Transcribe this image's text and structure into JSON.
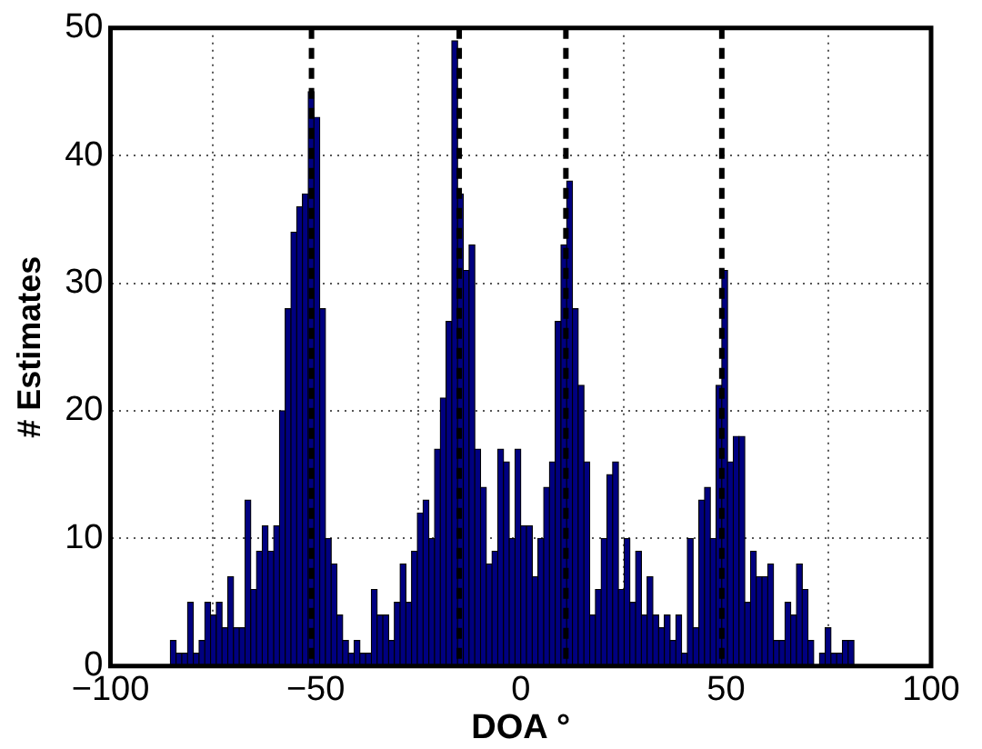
{
  "chart_data": {
    "type": "histogram",
    "xlabel": "DOA °",
    "ylabel": "# Estimates",
    "bins": [
      -85.4,
      -84,
      -82.6,
      -81.2,
      -79.8,
      -78.4,
      -77,
      -75.6,
      -74.2,
      -72.8,
      -71.4,
      -70,
      -68.6,
      -67.2,
      -65.8,
      -64.4,
      -63,
      -61.6,
      -60.2,
      -58.8,
      -57.4,
      -56,
      -54.6,
      -53.2,
      -51.8,
      -50.4,
      -49,
      -47.6,
      -46.2,
      -44.8,
      -43.4,
      -42,
      -40.6,
      -39.2,
      -37.8,
      -36.4,
      -35,
      -33.6,
      -32.2,
      -30.8,
      -29.4,
      -28,
      -26.6,
      -25.2,
      -23.8,
      -22.4,
      -21,
      -19.6,
      -18.2,
      -16.8,
      -15.4,
      -14,
      -12.6,
      -11.2,
      -9.8,
      -8.4,
      -7,
      -5.6,
      -4.2,
      -2.8,
      -1.4,
      0,
      1.4,
      2.8,
      4.2,
      5.6,
      7,
      8.4,
      9.8,
      11.2,
      12.6,
      14,
      15.4,
      16.8,
      18.2,
      19.6,
      21,
      22.4,
      23.8,
      25.2,
      26.6,
      28,
      29.4,
      30.8,
      32.2,
      33.6,
      35,
      36.4,
      37.8,
      39.2,
      40.6,
      42,
      43.4,
      44.8,
      46.2,
      47.6,
      49,
      50.4,
      51.8,
      53.2,
      54.6,
      56,
      57.4,
      58.8,
      60.2,
      61.6,
      63,
      64.4,
      65.8,
      67.2,
      68.6,
      70,
      71.4,
      72.8,
      74.2,
      75.6,
      77,
      78.4,
      79.8,
      81.2
    ],
    "values": [
      2,
      1,
      1,
      5,
      1,
      2,
      5,
      4,
      5,
      3,
      7,
      3,
      3,
      13,
      6,
      9,
      11,
      9,
      11,
      20,
      28,
      34,
      36,
      37,
      45,
      43,
      28,
      10,
      8,
      4,
      2,
      1,
      2,
      1,
      1,
      6,
      4,
      4,
      2,
      5,
      8,
      5,
      9,
      12,
      13,
      10,
      17,
      21,
      27,
      49,
      37,
      31,
      33,
      17,
      14,
      8,
      9,
      17,
      16,
      10,
      17,
      11,
      11,
      7,
      10,
      14,
      16,
      27,
      33,
      38,
      28,
      22,
      16,
      4,
      6,
      10,
      15,
      16,
      6,
      10,
      5,
      9,
      4,
      7,
      4,
      3,
      4,
      2,
      4,
      1,
      10,
      3,
      13,
      14,
      10,
      22,
      31,
      16,
      18,
      18,
      5,
      9,
      7,
      7,
      8,
      2,
      2,
      5,
      4,
      8,
      6,
      2,
      0,
      1,
      3,
      1,
      1,
      2,
      2
    ],
    "color": "#000080",
    "xlim": [
      -100,
      100
    ],
    "xticks": [
      -100,
      -50,
      0,
      50,
      100
    ],
    "ylim": [
      0,
      50
    ],
    "yticks": [
      0,
      10,
      20,
      30,
      40,
      50
    ],
    "grid": true,
    "ref_lines": [
      {
        "axis": "x",
        "value": -51,
        "color": "#000000",
        "line_style": "dashed"
      },
      {
        "axis": "x",
        "value": -15,
        "color": "#000000",
        "line_style": "dashed"
      },
      {
        "axis": "x",
        "value": 11,
        "color": "#000000",
        "line_style": "dashed"
      },
      {
        "axis": "x",
        "value": 49,
        "color": "#000000",
        "line_style": "dashed"
      }
    ]
  }
}
